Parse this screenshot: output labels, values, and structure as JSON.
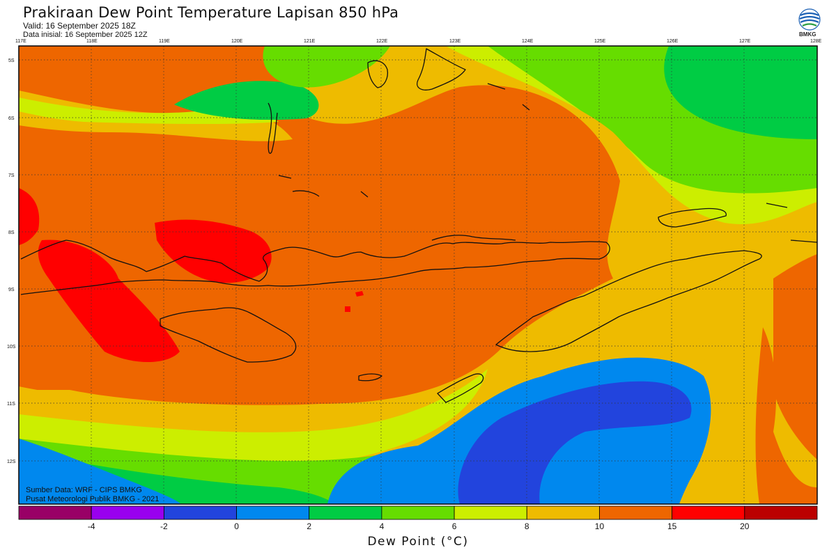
{
  "header": {
    "title": "Prakiraan Dew Point Temperature Lapisan 850 hPa",
    "valid": "Valid: 16 September 2025 18Z",
    "init": "Data inisial: 16 September 2025 12Z",
    "logo_text": "BMKG"
  },
  "credits": {
    "line1": "Sumber Data: WRF - CIPS BMKG",
    "line2": "Pusat Meteorologi Publik BMKG - 2021"
  },
  "colorbar": {
    "label": "Dew Point (°C)",
    "colors": [
      "#990066",
      "#9900ee",
      "#2244dd",
      "#0088ee",
      "#00cc44",
      "#66dd00",
      "#ccee00",
      "#eebb00",
      "#ee6600",
      "#ff0000",
      "#bb0000"
    ],
    "ticks": [
      "-4",
      "-2",
      "0",
      "2",
      "4",
      "6",
      "8",
      "10",
      "15",
      "20"
    ]
  },
  "map": {
    "lon_labels": [
      "117E",
      "118E",
      "119E",
      "120E",
      "121E",
      "122E",
      "123E",
      "124E",
      "125E",
      "126E",
      "127E",
      "128E"
    ],
    "lat_labels": [
      "5S",
      "6S",
      "7S",
      "8S",
      "9S",
      "10S",
      "11S",
      "12S"
    ],
    "colors": {
      "blue": "#0088ee",
      "darkblue": "#2244dd",
      "green": "#00cc44",
      "lightgreen": "#66dd00",
      "yellow": "#ccee00",
      "amber": "#eebb00",
      "orange": "#ee6600",
      "red": "#ff0000"
    }
  }
}
